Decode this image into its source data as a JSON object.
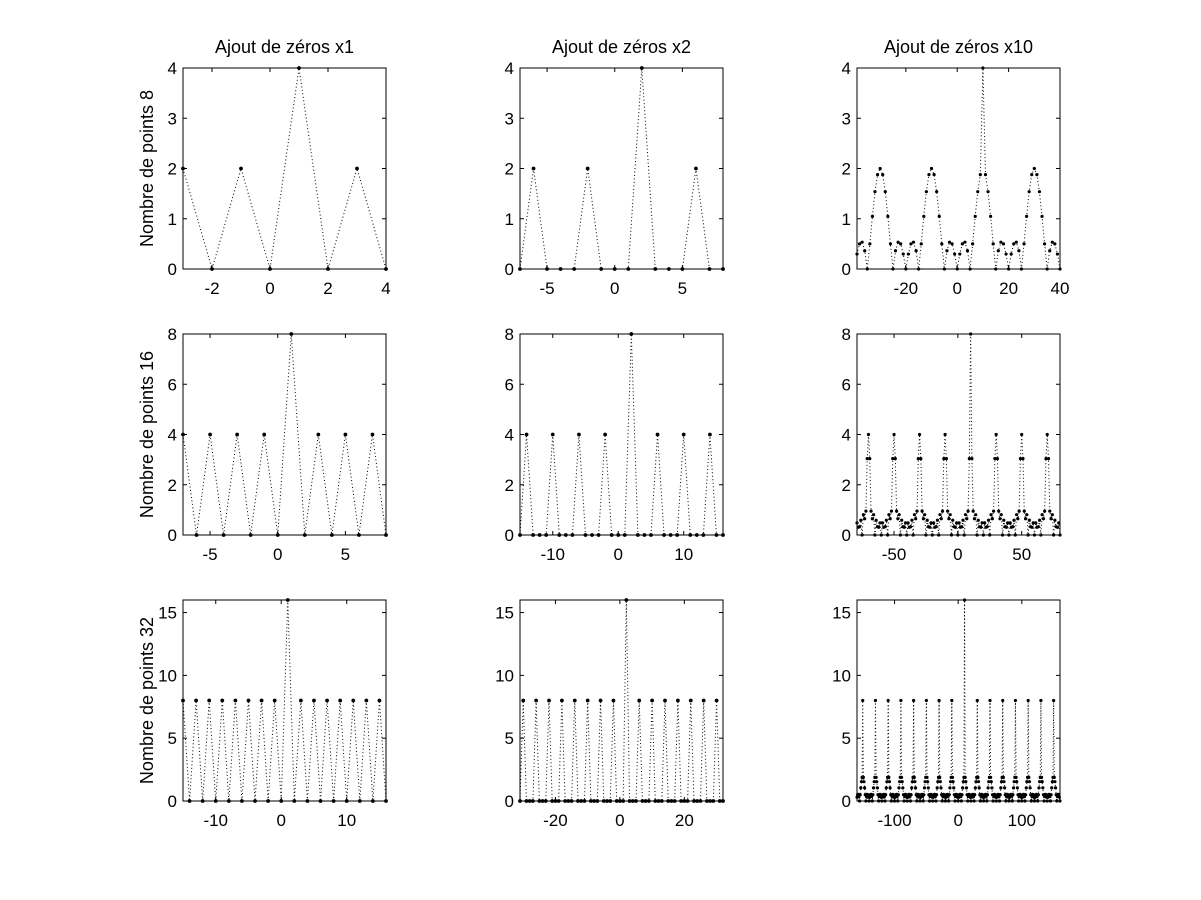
{
  "figure": {
    "column_titles": [
      "Ajout de zéros x1",
      "Ajout de zéros x2",
      "Ajout de zéros x10"
    ],
    "row_labels": [
      "Nombre de points 8",
      "Nombre de points 16",
      "Nombre de points 32"
    ]
  },
  "chart_data": [
    {
      "type": "line",
      "signal_length": 8,
      "zero_padding": 1,
      "title": "Ajout de zéros x1",
      "ylabel": "Nombre de points 8",
      "xlabel": "",
      "xlim": [
        -3,
        4
      ],
      "ylim": [
        0,
        4
      ],
      "xticks": [
        -2,
        0,
        2,
        4
      ],
      "yticks": [
        0,
        1,
        2,
        3,
        4
      ],
      "x_tick_labels": [
        "-2",
        "0",
        "2",
        "4"
      ],
      "y_tick_labels": [
        "0",
        "1",
        "2",
        "3",
        "4"
      ],
      "line_style": "dotted",
      "marker": "dot",
      "grid": false
    },
    {
      "type": "line",
      "signal_length": 8,
      "zero_padding": 2,
      "title": "Ajout de zéros x2",
      "ylabel": "",
      "xlabel": "",
      "xlim": [
        -7,
        8
      ],
      "ylim": [
        0,
        4
      ],
      "xticks": [
        -5,
        0,
        5
      ],
      "yticks": [
        0,
        1,
        2,
        3,
        4
      ],
      "x_tick_labels": [
        "-5",
        "0",
        "5"
      ],
      "y_tick_labels": [
        "0",
        "1",
        "2",
        "3",
        "4"
      ],
      "line_style": "dotted",
      "marker": "dot",
      "grid": false
    },
    {
      "type": "line",
      "signal_length": 8,
      "zero_padding": 10,
      "title": "Ajout de zéros x10",
      "ylabel": "",
      "xlabel": "",
      "xlim": [
        -39,
        40
      ],
      "ylim": [
        0,
        4
      ],
      "xticks": [
        -20,
        0,
        20,
        40
      ],
      "yticks": [
        0,
        1,
        2,
        3,
        4
      ],
      "x_tick_labels": [
        "-20",
        "0",
        "20",
        "40"
      ],
      "y_tick_labels": [
        "0",
        "1",
        "2",
        "3",
        "4"
      ],
      "line_style": "dotted",
      "marker": "dot",
      "grid": false
    },
    {
      "type": "line",
      "signal_length": 16,
      "zero_padding": 1,
      "title": "",
      "ylabel": "Nombre de points 16",
      "xlabel": "",
      "xlim": [
        -7,
        8
      ],
      "ylim": [
        0,
        8
      ],
      "xticks": [
        -5,
        0,
        5
      ],
      "yticks": [
        0,
        2,
        4,
        6,
        8
      ],
      "x_tick_labels": [
        "-5",
        "0",
        "5"
      ],
      "y_tick_labels": [
        "0",
        "2",
        "4",
        "6",
        "8"
      ],
      "line_style": "dotted",
      "marker": "dot",
      "grid": false
    },
    {
      "type": "line",
      "signal_length": 16,
      "zero_padding": 2,
      "title": "",
      "ylabel": "",
      "xlabel": "",
      "xlim": [
        -15,
        16
      ],
      "ylim": [
        0,
        8
      ],
      "xticks": [
        -10,
        0,
        10
      ],
      "yticks": [
        0,
        2,
        4,
        6,
        8
      ],
      "x_tick_labels": [
        "-10",
        "0",
        "10"
      ],
      "y_tick_labels": [
        "0",
        "2",
        "4",
        "6",
        "8"
      ],
      "line_style": "dotted",
      "marker": "dot",
      "grid": false
    },
    {
      "type": "line",
      "signal_length": 16,
      "zero_padding": 10,
      "title": "",
      "ylabel": "",
      "xlabel": "",
      "xlim": [
        -79,
        80
      ],
      "ylim": [
        0,
        8
      ],
      "xticks": [
        -50,
        0,
        50
      ],
      "yticks": [
        0,
        2,
        4,
        6,
        8
      ],
      "x_tick_labels": [
        "-50",
        "0",
        "50"
      ],
      "y_tick_labels": [
        "0",
        "2",
        "4",
        "6",
        "8"
      ],
      "line_style": "dotted",
      "marker": "dot",
      "grid": false
    },
    {
      "type": "line",
      "signal_length": 32,
      "zero_padding": 1,
      "title": "",
      "ylabel": "Nombre de points 32",
      "xlabel": "",
      "xlim": [
        -15,
        16
      ],
      "ylim": [
        0,
        16
      ],
      "xticks": [
        -10,
        0,
        10
      ],
      "yticks": [
        0,
        5,
        10,
        15
      ],
      "x_tick_labels": [
        "-10",
        "0",
        "10"
      ],
      "y_tick_labels": [
        "0",
        "5",
        "10",
        "15"
      ],
      "line_style": "dotted",
      "marker": "dot",
      "grid": false
    },
    {
      "type": "line",
      "signal_length": 32,
      "zero_padding": 2,
      "title": "",
      "ylabel": "",
      "xlabel": "",
      "xlim": [
        -31,
        32
      ],
      "ylim": [
        0,
        16
      ],
      "xticks": [
        -20,
        0,
        20
      ],
      "yticks": [
        0,
        5,
        10,
        15
      ],
      "x_tick_labels": [
        "-20",
        "0",
        "20"
      ],
      "y_tick_labels": [
        "0",
        "5",
        "10",
        "15"
      ],
      "line_style": "dotted",
      "marker": "dot",
      "grid": false
    },
    {
      "type": "line",
      "signal_length": 32,
      "zero_padding": 10,
      "title": "",
      "ylabel": "",
      "xlabel": "",
      "xlim": [
        -159,
        160
      ],
      "ylim": [
        0,
        16
      ],
      "xticks": [
        -100,
        0,
        100
      ],
      "yticks": [
        0,
        5,
        10,
        15
      ],
      "x_tick_labels": [
        "-100",
        "0",
        "100"
      ],
      "y_tick_labels": [
        "0",
        "5",
        "10",
        "15"
      ],
      "line_style": "dotted",
      "marker": "dot",
      "grid": false
    }
  ]
}
